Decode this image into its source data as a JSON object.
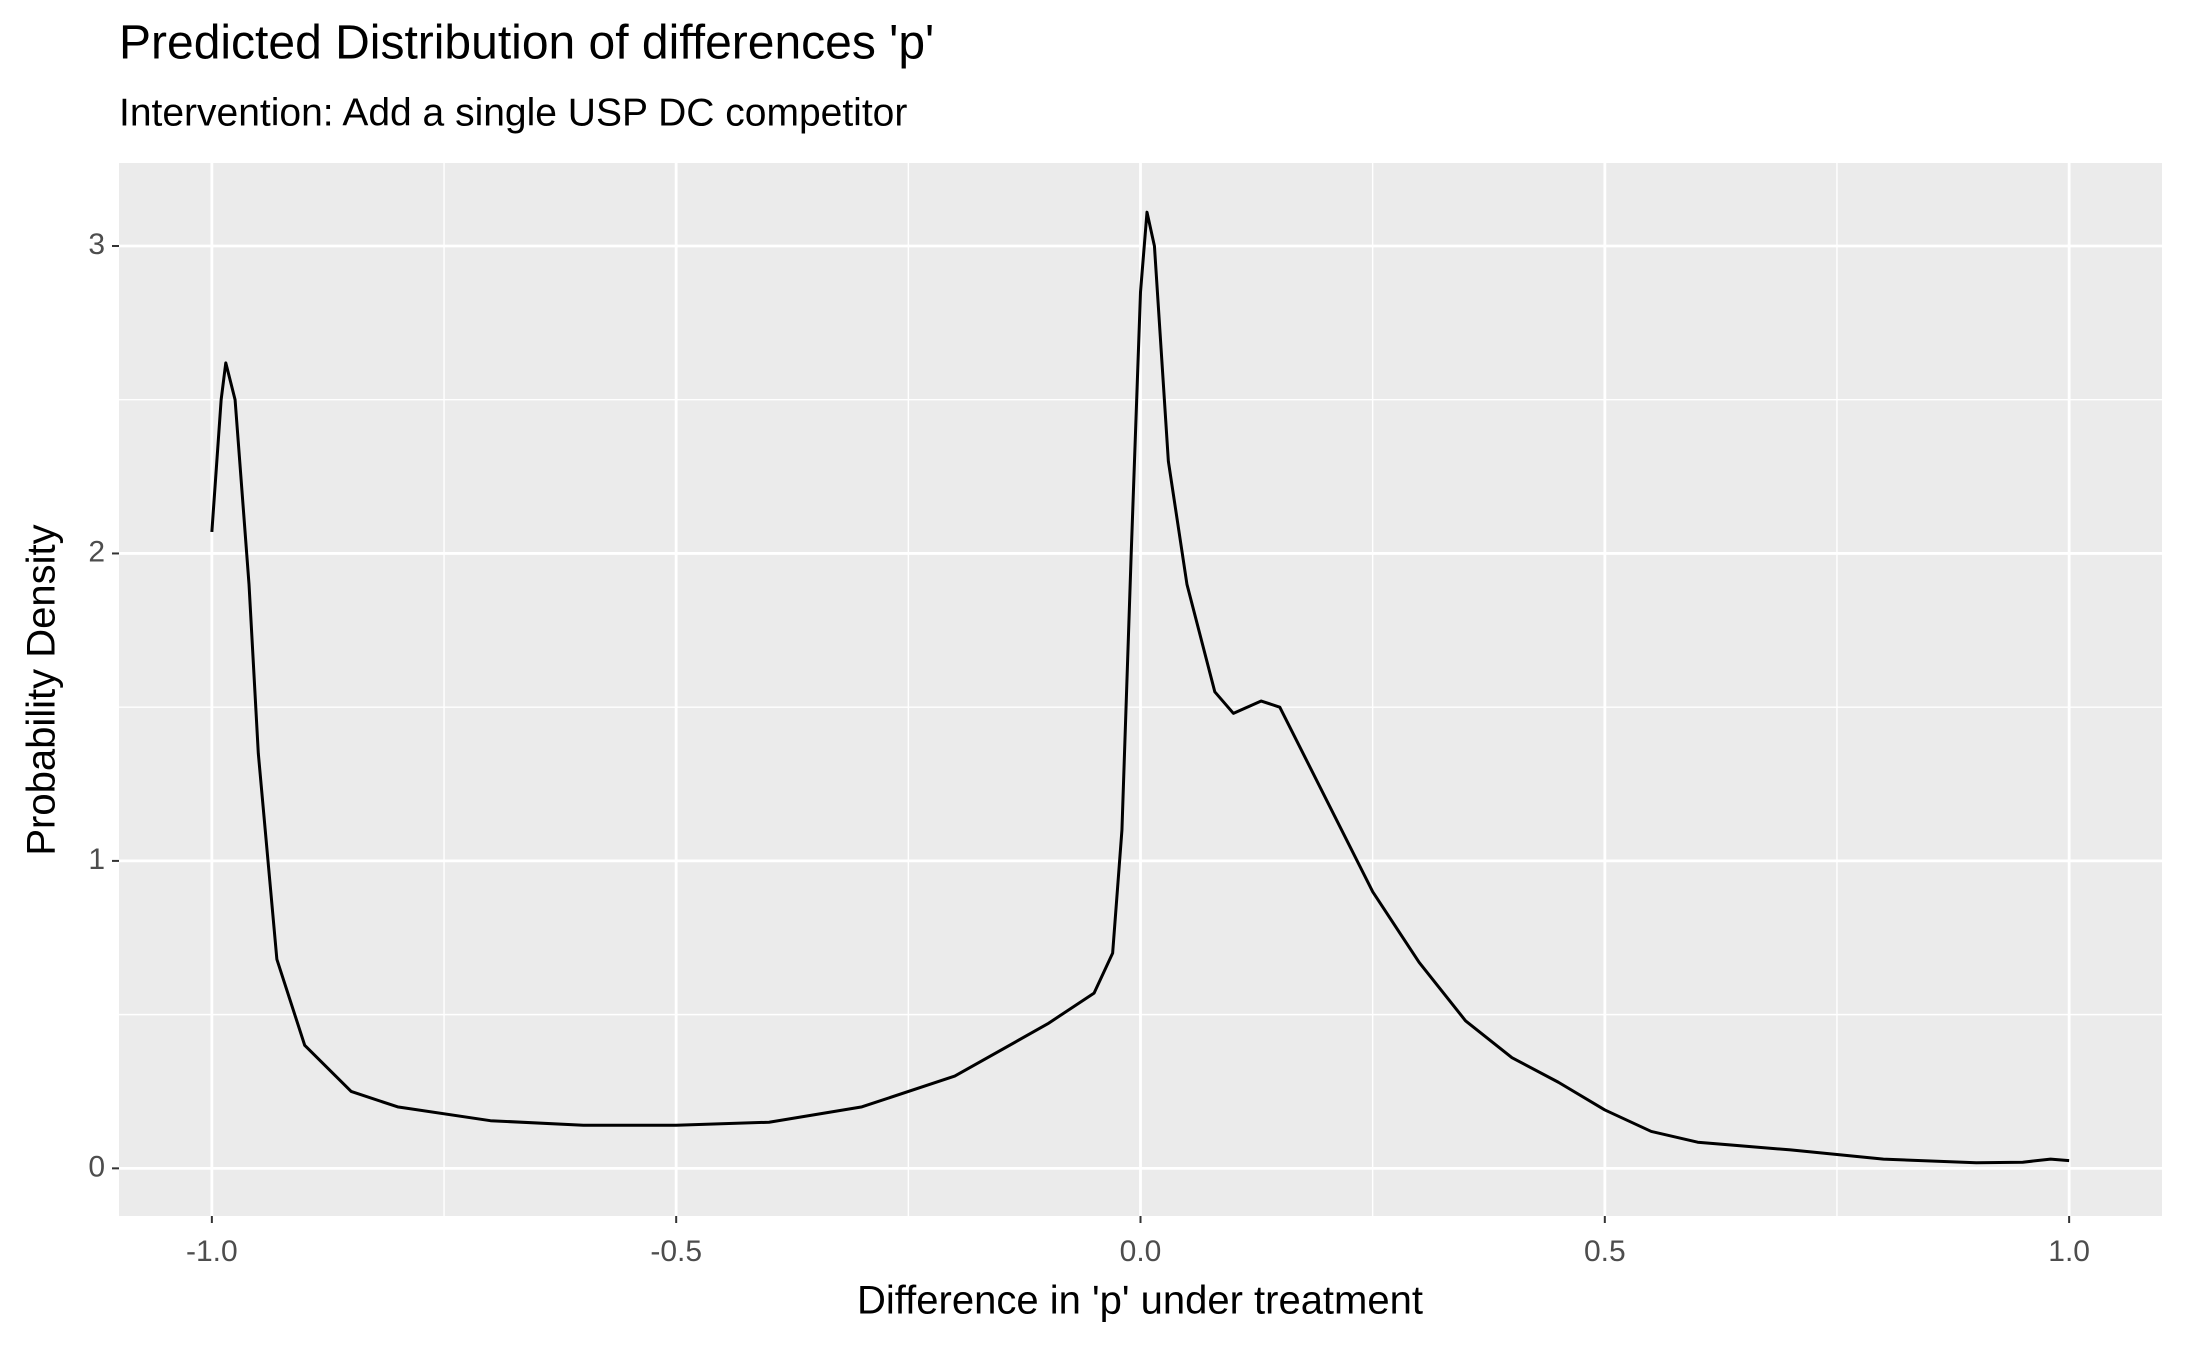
{
  "chart_data": {
    "type": "line",
    "title": "Predicted Distribution of differences 'p'",
    "subtitle": "Intervention: Add a single USP DC competitor",
    "x_label": "Difference in 'p' under treatment",
    "y_label": "Probability Density",
    "x": [
      -1.0,
      -0.99,
      -0.985,
      -0.975,
      -0.96,
      -0.95,
      -0.93,
      -0.9,
      -0.85,
      -0.8,
      -0.7,
      -0.6,
      -0.5,
      -0.4,
      -0.3,
      -0.2,
      -0.1,
      -0.05,
      -0.03,
      -0.02,
      -0.01,
      0.0,
      0.007,
      0.015,
      0.03,
      0.05,
      0.08,
      0.1,
      0.13,
      0.15,
      0.2,
      0.25,
      0.3,
      0.35,
      0.4,
      0.45,
      0.5,
      0.55,
      0.6,
      0.7,
      0.8,
      0.9,
      0.95,
      0.98,
      1.0
    ],
    "series": [
      {
        "name": "density",
        "color": "#000000",
        "values": [
          2.07,
          2.5,
          2.62,
          2.5,
          1.9,
          1.35,
          0.68,
          0.4,
          0.25,
          0.2,
          0.155,
          0.14,
          0.14,
          0.15,
          0.2,
          0.3,
          0.47,
          0.57,
          0.7,
          1.1,
          2.0,
          2.85,
          3.11,
          3.0,
          2.3,
          1.9,
          1.55,
          1.48,
          1.52,
          1.5,
          1.2,
          0.9,
          0.67,
          0.48,
          0.36,
          0.28,
          0.19,
          0.12,
          0.085,
          0.06,
          0.03,
          0.018,
          0.02,
          0.03,
          0.025
        ]
      }
    ],
    "xlim": [
      -1.1,
      1.1
    ],
    "ylim": [
      -0.155,
      3.27
    ],
    "xticks": [
      {
        "value": -1.0,
        "label": "-1.0"
      },
      {
        "value": -0.5,
        "label": "-0.5"
      },
      {
        "value": 0.0,
        "label": "0.0"
      },
      {
        "value": 0.5,
        "label": "0.5"
      },
      {
        "value": 1.0,
        "label": "1.0"
      }
    ],
    "yticks": [
      0,
      1,
      2,
      3
    ],
    "grid": true,
    "legend": false
  }
}
